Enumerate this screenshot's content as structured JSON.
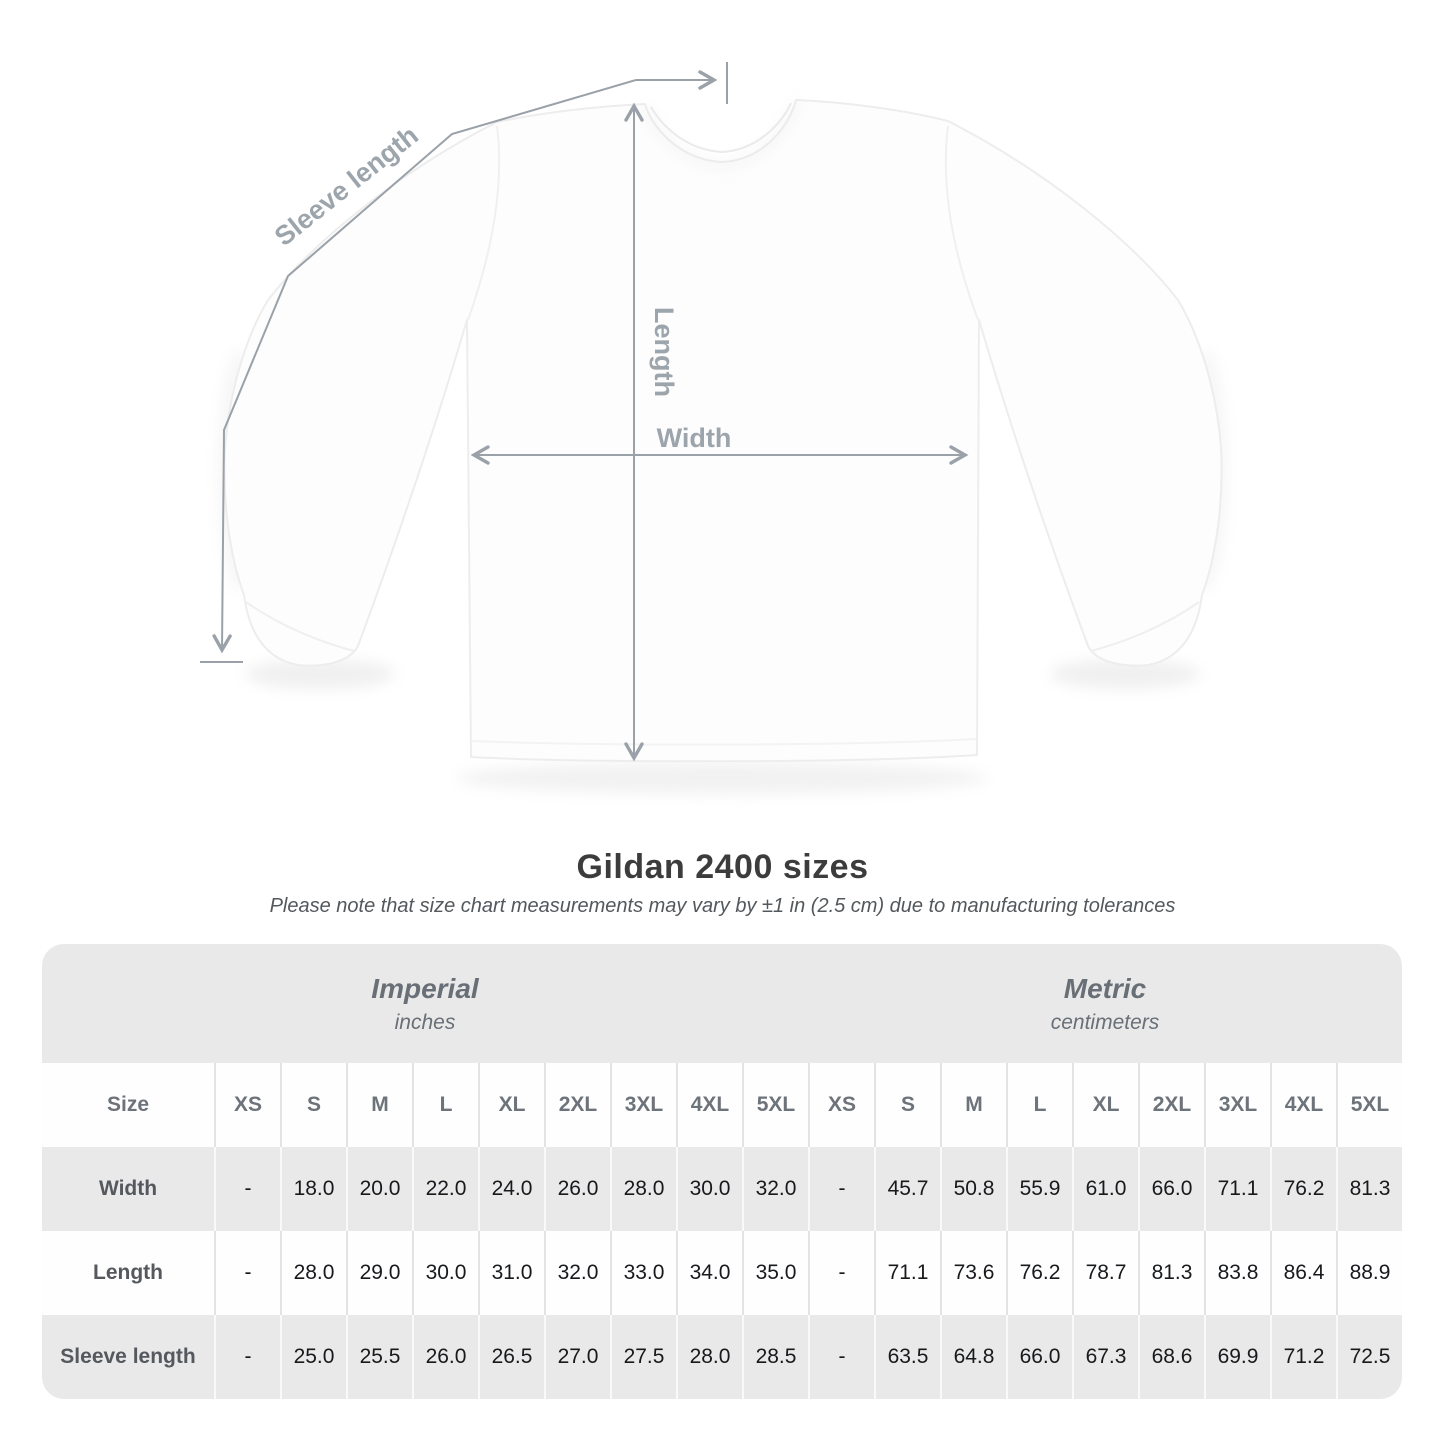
{
  "diagram": {
    "sleeve_length_label": "Sleeve length",
    "length_label": "Length",
    "width_label": "Width",
    "line_color": "#9aa1a8",
    "label_color": "#9ca4ac"
  },
  "title": "Gildan 2400 sizes",
  "subtitle": "Please note that size chart measurements may vary by ±1 in (2.5 cm) due to manufacturing tolerances",
  "table": {
    "unit_sections": [
      {
        "name": "Imperial",
        "unit": "inches"
      },
      {
        "name": "Metric",
        "unit": "centimeters"
      }
    ],
    "size_header": "Size",
    "sizes": [
      "XS",
      "S",
      "M",
      "L",
      "XL",
      "2XL",
      "3XL",
      "4XL",
      "5XL"
    ],
    "rows": [
      {
        "label": "Width",
        "imperial": [
          "-",
          "18.0",
          "20.0",
          "22.0",
          "24.0",
          "26.0",
          "28.0",
          "30.0",
          "32.0"
        ],
        "metric": [
          "-",
          "45.7",
          "50.8",
          "55.9",
          "61.0",
          "66.0",
          "71.1",
          "76.2",
          "81.3"
        ]
      },
      {
        "label": "Length",
        "imperial": [
          "-",
          "28.0",
          "29.0",
          "30.0",
          "31.0",
          "32.0",
          "33.0",
          "34.0",
          "35.0"
        ],
        "metric": [
          "-",
          "71.1",
          "73.6",
          "76.2",
          "78.7",
          "81.3",
          "83.8",
          "86.4",
          "88.9"
        ]
      },
      {
        "label": "Sleeve length",
        "imperial": [
          "-",
          "25.0",
          "25.5",
          "26.0",
          "26.5",
          "27.0",
          "27.5",
          "28.0",
          "28.5"
        ],
        "metric": [
          "-",
          "63.5",
          "64.8",
          "66.0",
          "67.3",
          "68.6",
          "69.9",
          "71.2",
          "72.5"
        ]
      }
    ],
    "colors": {
      "container": "#e9e9e9",
      "white_row": "#fefefe",
      "separator_on_white": "#e3e3e3",
      "separator_on_gray": "#f9f9f9"
    }
  }
}
